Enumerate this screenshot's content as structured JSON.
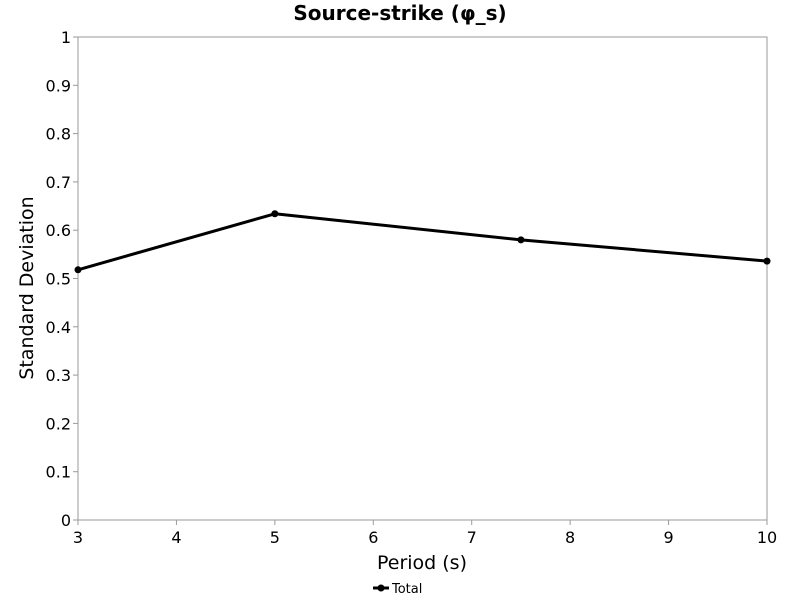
{
  "chart_data": {
    "type": "line",
    "title": "Source-strike (φ_s)",
    "xlabel": "Period (s)",
    "ylabel": "Standard Deviation",
    "xlim": [
      3,
      10
    ],
    "ylim": [
      0,
      1
    ],
    "xticks": [
      "3",
      "4",
      "5",
      "6",
      "7",
      "8",
      "9",
      "10"
    ],
    "yticks": [
      "0",
      "0.1",
      "0.2",
      "0.3",
      "0.4",
      "0.5",
      "0.6",
      "0.7",
      "0.8",
      "0.9",
      "1"
    ],
    "grid": true,
    "legend_position": "bottom-center",
    "series": [
      {
        "name": "Total",
        "color": "#000000",
        "marker": "circle",
        "x": [
          3,
          5,
          7.5,
          10
        ],
        "y": [
          0.518,
          0.634,
          0.58,
          0.536
        ]
      }
    ]
  }
}
